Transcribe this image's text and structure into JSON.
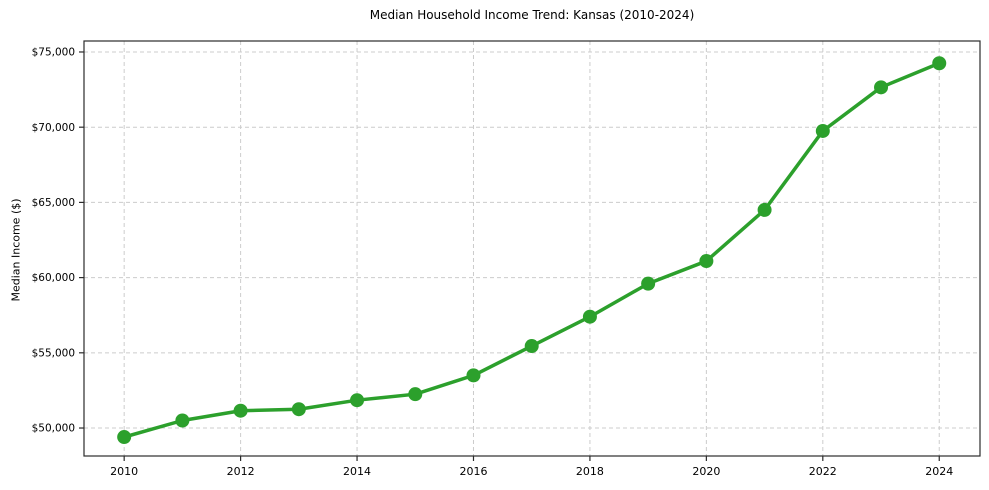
{
  "chart_data": {
    "type": "line",
    "title": "Median Household Income Trend: Kansas (2010-2024)",
    "xlabel": "",
    "ylabel": "Median Income ($)",
    "x": [
      2010,
      2011,
      2012,
      2013,
      2014,
      2015,
      2016,
      2017,
      2018,
      2019,
      2020,
      2021,
      2022,
      2023,
      2024
    ],
    "values": [
      49400,
      50500,
      51150,
      51250,
      51850,
      52250,
      53500,
      55450,
      57400,
      59600,
      61100,
      64500,
      69750,
      72650,
      74250
    ],
    "x_tick_values": [
      2010,
      2012,
      2014,
      2016,
      2018,
      2020,
      2022,
      2024
    ],
    "x_tick_labels": [
      "2010",
      "2012",
      "2014",
      "2016",
      "2018",
      "2020",
      "2022",
      "2024"
    ],
    "y_tick_values": [
      50000,
      55000,
      60000,
      65000,
      70000,
      75000
    ],
    "y_tick_labels": [
      "$50,000",
      "$55,000",
      "$60,000",
      "$65,000",
      "$70,000",
      "$75,000"
    ],
    "xlim": [
      2009.31,
      2024.7
    ],
    "ylim": [
      48140,
      75730
    ],
    "grid": {
      "show": true,
      "style": "dashed",
      "axes": "both"
    },
    "legend": {
      "show": false
    },
    "marker": "circle"
  },
  "style": {
    "line_color": "#2ca02c",
    "marker_color": "#2ca02c",
    "grid_color": "#cccccc",
    "spine_color": "#2b2b2b",
    "text_color": "#000000",
    "background": "#ffffff"
  }
}
